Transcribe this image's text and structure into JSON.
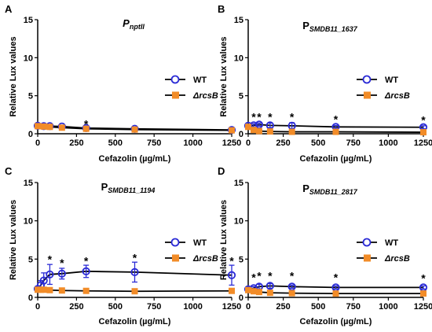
{
  "chart_data": [
    {
      "type": "line",
      "panel_letter": "A",
      "title_main": "P",
      "title_sub": "nptII",
      "xlabel": "",
      "ylabel": "",
      "xlim": [
        0,
        1250
      ],
      "ylim": [
        0,
        15
      ],
      "x_ticks": [
        0,
        250,
        500,
        750,
        1000,
        1250
      ],
      "y_ticks": [
        0,
        5,
        10,
        15
      ],
      "legend": "right",
      "series": [
        {
          "name": "WT",
          "key": "wt",
          "marker": "circle",
          "x": [
            0,
            39,
            78,
            156,
            312,
            625,
            1250
          ],
          "values": [
            1.05,
            1.0,
            1.0,
            0.95,
            0.75,
            0.65,
            0.5
          ],
          "err": [
            0.15,
            0.1,
            0.1,
            0.1,
            0.1,
            0.1,
            0.05
          ]
        },
        {
          "name": "ΔrcsB",
          "key": "rcsb",
          "marker": "square",
          "x": [
            0,
            39,
            78,
            156,
            312,
            625,
            1250
          ],
          "values": [
            1.0,
            0.95,
            0.9,
            0.8,
            0.65,
            0.55,
            0.45
          ],
          "err": [
            0.1,
            0.1,
            0.1,
            0.1,
            0.1,
            0.1,
            0.05
          ]
        }
      ],
      "annotations": [
        {
          "x": 312,
          "y": 1.3,
          "text": "*"
        }
      ]
    },
    {
      "type": "line",
      "panel_letter": "B",
      "title_main": "P",
      "title_sub": "SMDB11_1637",
      "xlabel": "Cefazolin (µg/mL)",
      "ylabel": "",
      "xlim": [
        0,
        1250
      ],
      "ylim": [
        0,
        15
      ],
      "x_ticks": [
        0,
        250,
        500,
        750,
        1000,
        1250
      ],
      "y_ticks": [
        0,
        5,
        10,
        15
      ],
      "legend": "right",
      "series": [
        {
          "name": "WT",
          "key": "wt",
          "marker": "circle",
          "x": [
            0,
            39,
            78,
            156,
            312,
            625,
            1250
          ],
          "values": [
            1.05,
            1.1,
            1.2,
            1.1,
            1.05,
            0.9,
            0.85
          ],
          "err": [
            0.15,
            0.2,
            0.2,
            0.3,
            0.4,
            0.2,
            0.2
          ]
        },
        {
          "name": "ΔrcsB",
          "key": "rcsb",
          "marker": "square",
          "x": [
            0,
            39,
            78,
            156,
            312,
            625,
            1250
          ],
          "values": [
            0.9,
            0.5,
            0.35,
            0.3,
            0.25,
            0.25,
            0.2
          ],
          "err": [
            0.1,
            0.05,
            0.05,
            0.05,
            0.05,
            0.05,
            0.05
          ]
        }
      ],
      "annotations": [
        {
          "x": 39,
          "y": 2.2,
          "text": "*"
        },
        {
          "x": 78,
          "y": 2.2,
          "text": "*"
        },
        {
          "x": 156,
          "y": 2.2,
          "text": "*"
        },
        {
          "x": 312,
          "y": 2.2,
          "text": "*"
        },
        {
          "x": 625,
          "y": 1.9,
          "text": "*"
        },
        {
          "x": 1250,
          "y": 1.8,
          "text": "*"
        }
      ]
    },
    {
      "type": "line",
      "panel_letter": "C",
      "title_main": "P",
      "title_sub": "SMDB11_1194",
      "xlabel": "",
      "ylabel": "",
      "xlim": [
        0,
        1250
      ],
      "ylim": [
        0,
        15
      ],
      "x_ticks": [
        0,
        250,
        500,
        750,
        1000,
        1250
      ],
      "y_ticks": [
        0,
        5,
        10,
        15
      ],
      "legend": "right",
      "series": [
        {
          "name": "WT",
          "key": "wt",
          "marker": "circle",
          "x": [
            0,
            20,
            39,
            78,
            156,
            312,
            625,
            1250
          ],
          "values": [
            1.1,
            1.6,
            2.2,
            3.0,
            3.1,
            3.4,
            3.3,
            2.9
          ],
          "err": [
            0.3,
            0.6,
            1.0,
            1.3,
            0.7,
            0.8,
            1.3,
            1.3
          ]
        },
        {
          "name": "ΔrcsB",
          "key": "rcsb",
          "marker": "square",
          "x": [
            0,
            20,
            39,
            78,
            156,
            312,
            625,
            1250
          ],
          "values": [
            1.0,
            1.0,
            1.0,
            0.95,
            0.9,
            0.85,
            0.8,
            0.85
          ],
          "err": [
            0.05,
            0.05,
            0.05,
            0.05,
            0.05,
            0.05,
            0.05,
            0.05
          ]
        }
      ],
      "annotations": [
        {
          "x": 78,
          "y": 5.0,
          "text": "*"
        },
        {
          "x": 156,
          "y": 4.5,
          "text": "*"
        },
        {
          "x": 312,
          "y": 4.8,
          "text": "*"
        },
        {
          "x": 625,
          "y": 5.2,
          "text": "*"
        },
        {
          "x": 1250,
          "y": 4.8,
          "text": "*"
        }
      ]
    },
    {
      "type": "line",
      "panel_letter": "D",
      "title_main": "P",
      "title_sub": "SMDB11_2817",
      "xlabel": "Cefazolin (µg/mL)",
      "ylabel": "",
      "xlim": [
        0,
        1250
      ],
      "ylim": [
        0,
        15
      ],
      "x_ticks": [
        0,
        250,
        500,
        750,
        1000,
        1250
      ],
      "y_ticks": [
        0,
        5,
        10,
        15
      ],
      "legend": "right",
      "series": [
        {
          "name": "WT",
          "key": "wt",
          "marker": "circle",
          "x": [
            0,
            39,
            78,
            156,
            312,
            625,
            1250
          ],
          "values": [
            1.05,
            1.2,
            1.4,
            1.5,
            1.4,
            1.3,
            1.3
          ],
          "err": [
            0.15,
            0.2,
            0.3,
            0.3,
            0.2,
            0.2,
            0.2
          ]
        },
        {
          "name": "ΔrcsB",
          "key": "rcsb",
          "marker": "square",
          "x": [
            0,
            39,
            78,
            156,
            312,
            625,
            1250
          ],
          "values": [
            0.95,
            0.8,
            0.7,
            0.6,
            0.55,
            0.5,
            0.5
          ],
          "err": [
            0.05,
            0.05,
            0.05,
            0.05,
            0.05,
            0.05,
            0.05
          ]
        }
      ],
      "annotations": [
        {
          "x": 39,
          "y": 2.6,
          "text": "*"
        },
        {
          "x": 78,
          "y": 2.8,
          "text": "*"
        },
        {
          "x": 156,
          "y": 2.8,
          "text": "*"
        },
        {
          "x": 312,
          "y": 2.8,
          "text": "*"
        },
        {
          "x": 625,
          "y": 2.6,
          "text": "*"
        },
        {
          "x": 1250,
          "y": 2.5,
          "text": "*"
        }
      ]
    }
  ],
  "axes": {
    "ylabel": "Relative Lux values",
    "xlabel": "Cefazolin (µg/mL)"
  },
  "colors": {
    "wt": "#2b2bd6",
    "rcsb": "#f28c28",
    "line": "#000000",
    "axis": "#000000"
  }
}
